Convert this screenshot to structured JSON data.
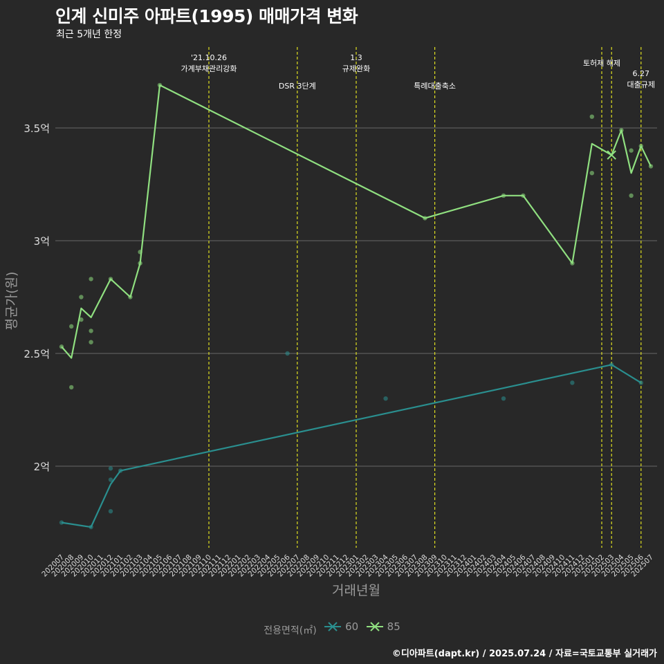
{
  "header": {
    "title": "인계 신미주 아파트(1995) 매매가격 변화",
    "subtitle": "최근 5개년 한정"
  },
  "caption": "©디아파트(dapt.kr) / 2025.07.24 / 자료=국토교통부 실거래가",
  "legend": {
    "title": "전용면적(㎡)",
    "items": [
      {
        "label": "60",
        "color": "#2a8f8f"
      },
      {
        "label": "85",
        "color": "#90e080"
      }
    ]
  },
  "chart_data": {
    "type": "line",
    "title": "인계 신미주 아파트(1995) 매매가격 변화",
    "subtitle": "최근 5개년 한정",
    "xlabel": "거래년월",
    "ylabel": "평균가(원)",
    "x_ticks": [
      "202007",
      "202008",
      "202009",
      "202010",
      "202011",
      "202012",
      "202101",
      "202102",
      "202103",
      "202104",
      "202105",
      "202106",
      "202107",
      "202108",
      "202109",
      "202110",
      "202111",
      "202112",
      "202201",
      "202202",
      "202203",
      "202204",
      "202205",
      "202206",
      "202207",
      "202208",
      "202209",
      "202210",
      "202211",
      "202212",
      "202301",
      "202302",
      "202303",
      "202304",
      "202305",
      "202306",
      "202307",
      "202308",
      "202309",
      "202310",
      "202311",
      "202312",
      "202401",
      "202402",
      "202403",
      "202404",
      "202405",
      "202406",
      "202407",
      "202408",
      "202409",
      "202410",
      "202411",
      "202412",
      "202501",
      "202502",
      "202503",
      "202504",
      "202505",
      "202506",
      "202507"
    ],
    "y_ticks": [
      {
        "value": 2.0,
        "label": "2억"
      },
      {
        "value": 2.5,
        "label": "2.5억"
      },
      {
        "value": 3.0,
        "label": "3억"
      },
      {
        "value": 3.5,
        "label": "3.5억"
      }
    ],
    "ylim": [
      1.63,
      3.88
    ],
    "y_unit": "억원",
    "grid": true,
    "legend_position": "bottom",
    "series": [
      {
        "name": "60",
        "color": "#2a8f8f",
        "line": [
          {
            "x": "202007",
            "y": 1.75
          },
          {
            "x": "202010",
            "y": 1.73
          },
          {
            "x": "202012",
            "y": 1.92
          },
          {
            "x": "202101",
            "y": 1.98
          },
          {
            "x": "202503",
            "y": 2.45
          },
          {
            "x": "202506",
            "y": 2.37
          }
        ],
        "points": [
          {
            "x": "202007",
            "y": 1.75
          },
          {
            "x": "202010",
            "y": 1.73
          },
          {
            "x": "202012",
            "y": 1.99
          },
          {
            "x": "202012",
            "y": 1.94
          },
          {
            "x": "202012",
            "y": 1.8
          },
          {
            "x": "202101",
            "y": 1.98
          },
          {
            "x": "202206",
            "y": 2.5
          },
          {
            "x": "202304",
            "y": 2.3
          },
          {
            "x": "202404",
            "y": 2.3
          },
          {
            "x": "202411",
            "y": 2.37
          },
          {
            "x": "202503",
            "y": 2.45
          },
          {
            "x": "202506",
            "y": 2.37
          }
        ]
      },
      {
        "name": "85",
        "color": "#90e080",
        "line": [
          {
            "x": "202007",
            "y": 2.53
          },
          {
            "x": "202008",
            "y": 2.48
          },
          {
            "x": "202009",
            "y": 2.7
          },
          {
            "x": "202010",
            "y": 2.66
          },
          {
            "x": "202012",
            "y": 2.83
          },
          {
            "x": "202102",
            "y": 2.75
          },
          {
            "x": "202103",
            "y": 2.9
          },
          {
            "x": "202105",
            "y": 3.69
          },
          {
            "x": "202308",
            "y": 3.1
          },
          {
            "x": "202404",
            "y": 3.2
          },
          {
            "x": "202406",
            "y": 3.2
          },
          {
            "x": "202411",
            "y": 2.9
          },
          {
            "x": "202501",
            "y": 3.43
          },
          {
            "x": "202503",
            "y": 3.38
          },
          {
            "x": "202504",
            "y": 3.49
          },
          {
            "x": "202505",
            "y": 3.3
          },
          {
            "x": "202506",
            "y": 3.42
          },
          {
            "x": "202507",
            "y": 3.33
          }
        ],
        "points": [
          {
            "x": "202007",
            "y": 2.53
          },
          {
            "x": "202008",
            "y": 2.62
          },
          {
            "x": "202008",
            "y": 2.35
          },
          {
            "x": "202009",
            "y": 2.75
          },
          {
            "x": "202009",
            "y": 2.65
          },
          {
            "x": "202010",
            "y": 2.83
          },
          {
            "x": "202010",
            "y": 2.6
          },
          {
            "x": "202010",
            "y": 2.55
          },
          {
            "x": "202012",
            "y": 2.83
          },
          {
            "x": "202102",
            "y": 2.75
          },
          {
            "x": "202103",
            "y": 2.95
          },
          {
            "x": "202103",
            "y": 2.9
          },
          {
            "x": "202105",
            "y": 3.69
          },
          {
            "x": "202308",
            "y": 3.1
          },
          {
            "x": "202404",
            "y": 3.2
          },
          {
            "x": "202406",
            "y": 3.2
          },
          {
            "x": "202411",
            "y": 2.9
          },
          {
            "x": "202501",
            "y": 3.55
          },
          {
            "x": "202501",
            "y": 3.3
          },
          {
            "x": "202504",
            "y": 3.49
          },
          {
            "x": "202505",
            "y": 3.4
          },
          {
            "x": "202505",
            "y": 3.2
          },
          {
            "x": "202506",
            "y": 3.42
          },
          {
            "x": "202507",
            "y": 3.33
          }
        ],
        "markers": [
          {
            "x": "202503",
            "y": 3.38
          }
        ]
      }
    ],
    "vlines": [
      {
        "x": "202110",
        "lines": [
          "'21.10.26",
          "가계부채관리강화"
        ],
        "level": "upper"
      },
      {
        "x": "202207",
        "lines": [
          "DSR 3단계"
        ],
        "level": "lower"
      },
      {
        "x": "202301",
        "lines": [
          "1.3",
          "규제완화"
        ],
        "level": "upper"
      },
      {
        "x": "202309",
        "lines": [
          "특례대출축소"
        ],
        "level": "lower"
      },
      {
        "x": "202502",
        "lines": [
          "토허제 해제"
        ],
        "level": "upper"
      },
      {
        "x": "202503",
        "lines": [],
        "level": "upper"
      },
      {
        "x": "202506",
        "lines": [
          "6.27",
          "대출규제"
        ],
        "level": "lowest"
      }
    ]
  }
}
